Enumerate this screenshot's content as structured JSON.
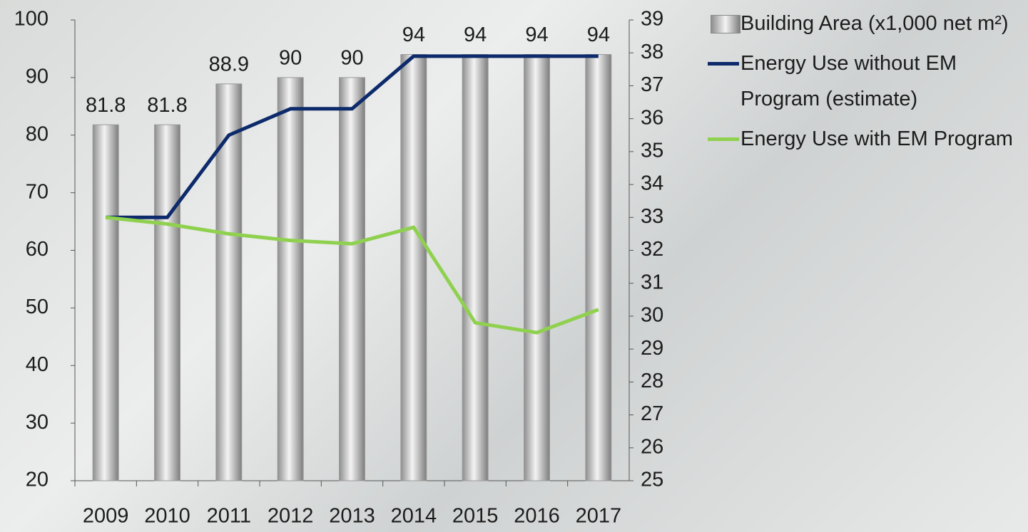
{
  "chart_data": {
    "type": "bar_line",
    "categories": [
      "2009",
      "2010",
      "2011",
      "2012",
      "2013",
      "2014",
      "2015",
      "2016",
      "2017"
    ],
    "ylim": [
      20,
      100
    ],
    "yticks": [
      20,
      30,
      40,
      50,
      60,
      70,
      80,
      90,
      100
    ],
    "y2lim": [
      25,
      39
    ],
    "y2ticks": [
      25,
      26,
      27,
      28,
      29,
      30,
      31,
      32,
      33,
      34,
      35,
      36,
      37,
      38,
      39
    ],
    "series": [
      {
        "name": "Building Area (x1,000 net m²)",
        "type": "bar",
        "color": "#c8c8c8",
        "values": [
          81.8,
          81.8,
          88.9,
          90,
          90,
          94,
          94,
          94,
          94
        ]
      },
      {
        "name": "Energy Use without EM Program (estimate)",
        "type": "line",
        "axis": "y2",
        "color": "#0d2a6b",
        "values": [
          33.0,
          33.0,
          35.5,
          36.3,
          36.3,
          37.9,
          37.9,
          37.9,
          37.9
        ]
      },
      {
        "name": "Energy Use with EM Program",
        "type": "line",
        "axis": "y2",
        "color": "#8fd14f",
        "values": [
          33.0,
          32.8,
          32.5,
          32.3,
          32.2,
          32.7,
          29.8,
          29.5,
          30.2
        ]
      }
    ]
  }
}
